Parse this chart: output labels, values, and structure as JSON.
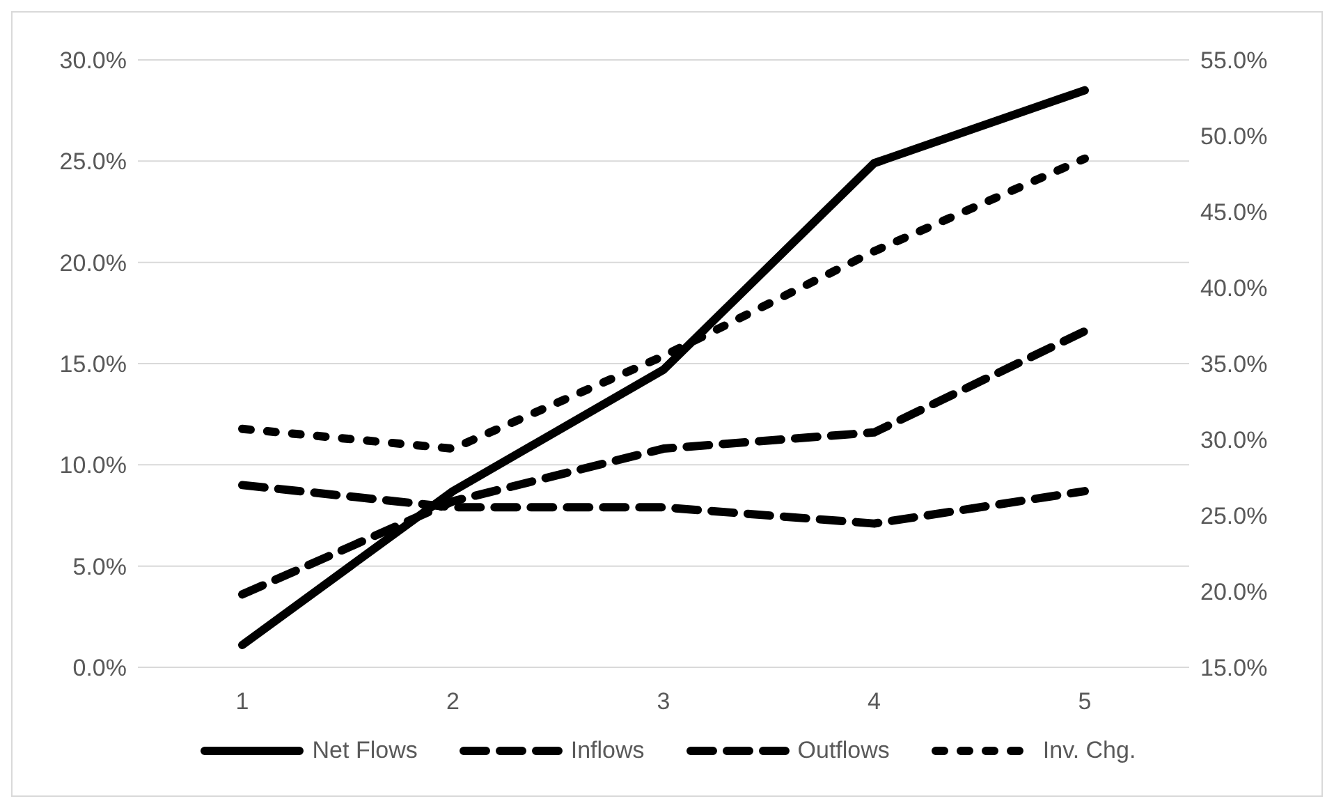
{
  "chart_data": {
    "type": "line",
    "categories": [
      "1",
      "2",
      "3",
      "4",
      "5"
    ],
    "series": [
      {
        "name": "Net Flows",
        "color": "#000000",
        "line_style": "solid",
        "values": [
          1.1,
          8.7,
          14.7,
          24.9,
          28.5
        ]
      },
      {
        "name": "Inflows",
        "color": "#000000",
        "line_style": "dashed",
        "values": [
          3.6,
          8.2,
          10.8,
          11.6,
          16.6
        ]
      },
      {
        "name": "Outflows",
        "color": "#000000",
        "line_style": "dashed",
        "values": [
          9.0,
          7.9,
          7.9,
          7.1,
          8.7
        ]
      },
      {
        "name": "Inv. Chg.",
        "color": "#000000",
        "line_style": "dotted",
        "axis": "y2",
        "values": [
          30.7,
          29.4,
          35.5,
          42.4,
          48.5
        ]
      }
    ],
    "ylim": [
      0,
      30
    ],
    "yticks": [
      {
        "value": 0,
        "label": "0.0%"
      },
      {
        "value": 5,
        "label": "5.0%"
      },
      {
        "value": 10,
        "label": "10.0%"
      },
      {
        "value": 15,
        "label": "15.0%"
      },
      {
        "value": 20,
        "label": "20.0%"
      },
      {
        "value": 25,
        "label": "25.0%"
      },
      {
        "value": 30,
        "label": "30.0%"
      }
    ],
    "y2lim": [
      15,
      55
    ],
    "y2ticks": [
      {
        "value": 15,
        "label": "15.0%"
      },
      {
        "value": 20,
        "label": "20.0%"
      },
      {
        "value": 25,
        "label": "25.0%"
      },
      {
        "value": 30,
        "label": "30.0%"
      },
      {
        "value": 35,
        "label": "35.0%"
      },
      {
        "value": 40,
        "label": "40.0%"
      },
      {
        "value": 45,
        "label": "45.0%"
      },
      {
        "value": 50,
        "label": "50.0%"
      },
      {
        "value": 55,
        "label": "55.0%"
      }
    ],
    "grid": "y",
    "legend": "bottom",
    "marker": "none"
  }
}
